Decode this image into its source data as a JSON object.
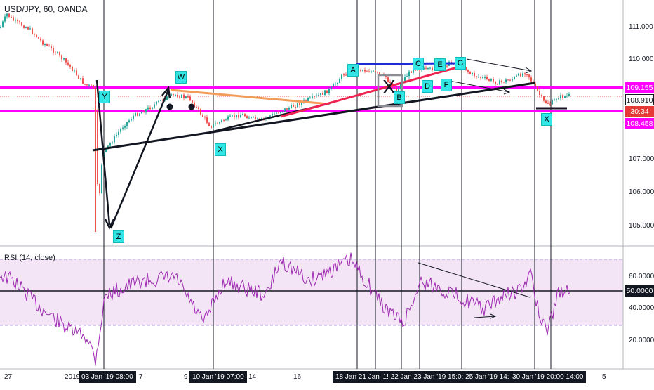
{
  "symbol_title": "USD/JPY, 60, OANDA",
  "rsi_title": "RSI (14, close)",
  "price_axis": [
    "111.000",
    "110.000",
    "107.000",
    "106.000",
    "105.000"
  ],
  "price_tags": {
    "upper": "109.155",
    "last": "108.910",
    "countdown": "30:34",
    "lower": "108.458"
  },
  "rsi_axis": [
    "60.0000",
    "40.0000",
    "20.0000"
  ],
  "rsi_value": "50.0000",
  "time_tags": [
    "03 Jan '19 08:00",
    "10 Jan '19 07:00",
    "18 Jan 21 Jan '1! 22 Jan 23 Jan '19 15:0: 25 Jan '19 14:00",
    "30 Jan '19 20:00 14:00"
  ],
  "date_labels": [
    "27",
    "2019",
    "7",
    "9",
    "14",
    "16",
    "5"
  ],
  "markers": {
    "Y": "Y",
    "Z": "Z",
    "W": "W",
    "X1": "X",
    "A": "A",
    "B": "B",
    "C": "C",
    "D": "D",
    "E": "E",
    "F": "F",
    "G": "G",
    "X2": "X",
    "big_x": "X"
  },
  "colors": {
    "magenta": "#ff00ff",
    "orange": "#f39c5a",
    "red_line": "#ef2351",
    "blue_line": "#1e2bd6",
    "rsi_line": "#9c27b0",
    "rsi_band": "#f3e5f5",
    "label_bg": "#33e6e6",
    "bull": "#26a69a",
    "bear": "#ef5350"
  }
}
